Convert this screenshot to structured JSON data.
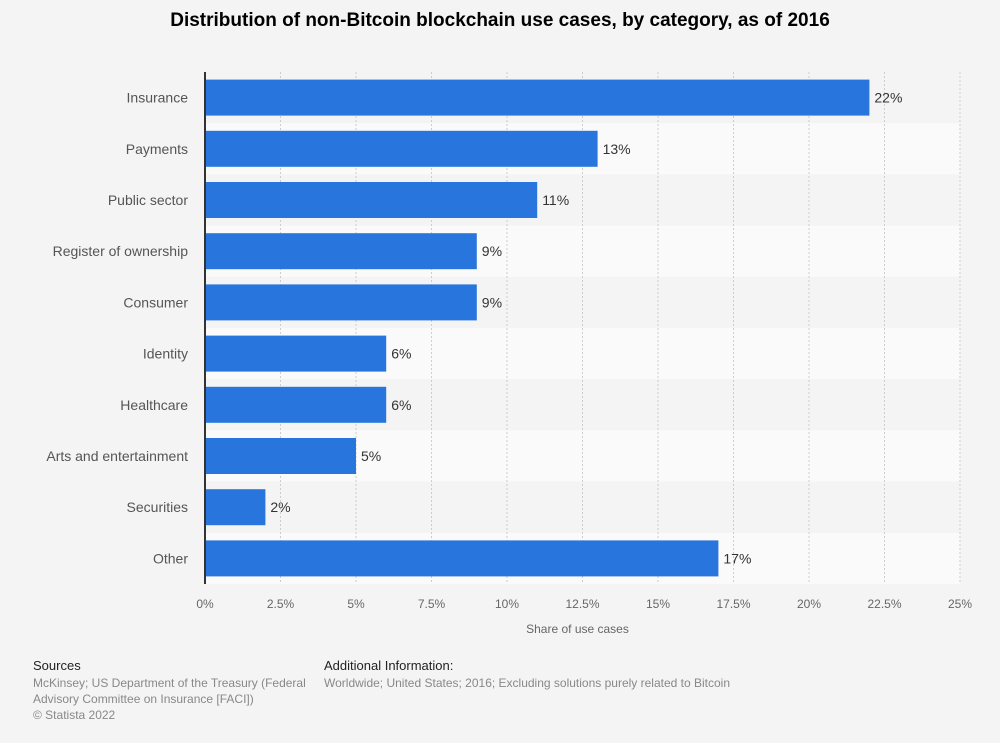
{
  "chart_data": {
    "type": "bar",
    "orientation": "horizontal",
    "title": "Distribution of non-Bitcoin blockchain use cases, by category, as of 2016",
    "xlabel": "Share of use cases",
    "ylabel": "",
    "categories": [
      "Insurance",
      "Payments",
      "Public sector",
      "Register of ownership",
      "Consumer",
      "Identity",
      "Healthcare",
      "Arts and entertainment",
      "Securities",
      "Other"
    ],
    "values": [
      22,
      13,
      11,
      9,
      9,
      6,
      6,
      5,
      2,
      17
    ],
    "data_labels": [
      "22%",
      "13%",
      "11%",
      "9%",
      "9%",
      "6%",
      "6%",
      "5%",
      "2%",
      "17%"
    ],
    "xlim": [
      0,
      25
    ],
    "xticks": [
      0,
      2.5,
      5,
      7.5,
      10,
      12.5,
      15,
      17.5,
      20,
      22.5,
      25
    ],
    "xtick_labels": [
      "0%",
      "2.5%",
      "5%",
      "7.5%",
      "10%",
      "12.5%",
      "15%",
      "17.5%",
      "20%",
      "22.5%",
      "25%"
    ],
    "grid": true,
    "bar_color": "#2876dd"
  },
  "footer": {
    "sources_heading": "Sources",
    "sources_line1": "McKinsey; US Department of the Treasury (Federal",
    "sources_line2": "Advisory Committee on Insurance [FACI])",
    "copyright": "© Statista 2022",
    "additional_heading": "Additional Information:",
    "additional_text": "Worldwide; United States; 2016; Excluding solutions purely related to Bitcoin"
  }
}
